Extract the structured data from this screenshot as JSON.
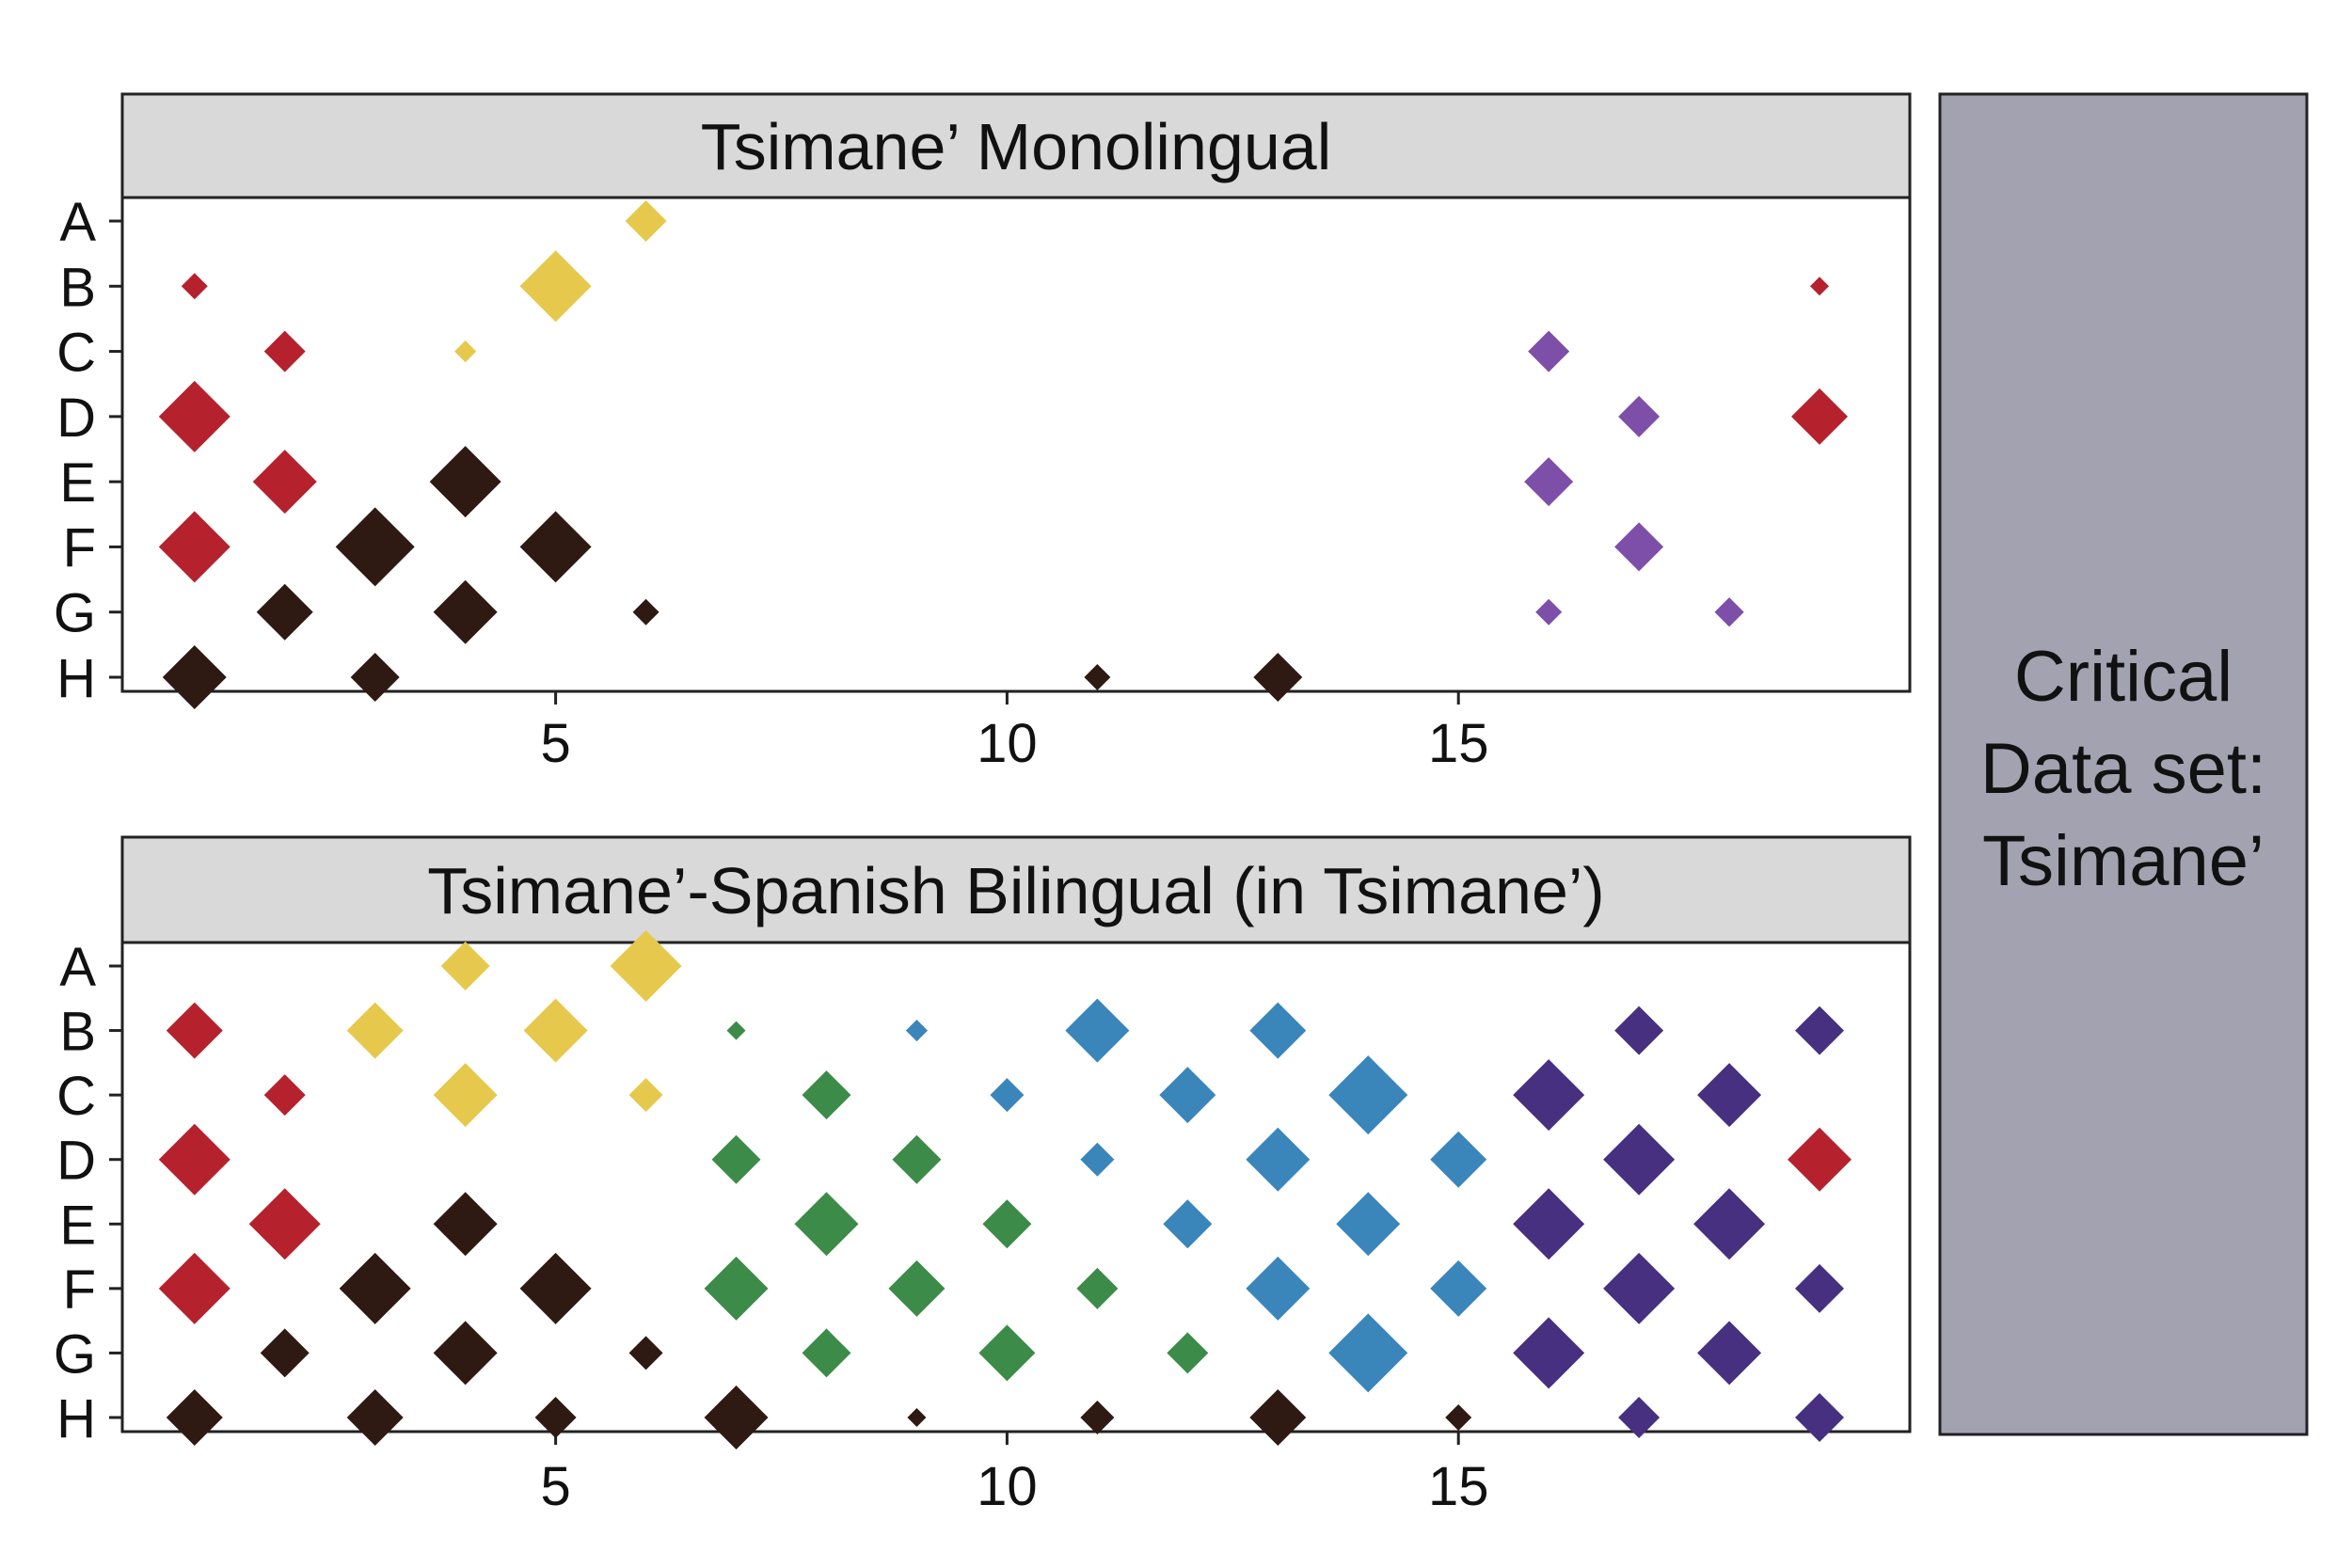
{
  "colors": {
    "red": "#b5222d",
    "yellow": "#e6c94c",
    "black": "#2e1a12",
    "purple": "#7d4fa8",
    "green": "#3d8b49",
    "blue": "#3a86bb",
    "indigo": "#46307f",
    "strip_bg": "#d9d9d9",
    "side_bg": "#a3a2b0"
  },
  "side_label": [
    "Critical",
    "Data set:",
    "Tsimane’"
  ],
  "chart_data": [
    {
      "type": "scatter",
      "title": "Tsimane’ Monolingual",
      "xlabel": "",
      "ylabel": "",
      "x_ticks": [
        5,
        10,
        15
      ],
      "categories": [
        "A",
        "B",
        "C",
        "D",
        "E",
        "F",
        "G",
        "H"
      ],
      "xlim": [
        0.2,
        20
      ],
      "points": [
        {
          "x": 6,
          "y": "A",
          "color": "yellow",
          "size": 2
        },
        {
          "x": 1,
          "y": "B",
          "color": "red",
          "size": 1
        },
        {
          "x": 5,
          "y": "B",
          "color": "yellow",
          "size": 4
        },
        {
          "x": 19,
          "y": "B",
          "color": "red",
          "size": 0.5
        },
        {
          "x": 2,
          "y": "C",
          "color": "red",
          "size": 2
        },
        {
          "x": 4,
          "y": "C",
          "color": "yellow",
          "size": 0.7
        },
        {
          "x": 16,
          "y": "C",
          "color": "purple",
          "size": 2
        },
        {
          "x": 1,
          "y": "D",
          "color": "red",
          "size": 4
        },
        {
          "x": 17,
          "y": "D",
          "color": "purple",
          "size": 2
        },
        {
          "x": 19,
          "y": "D",
          "color": "red",
          "size": 3
        },
        {
          "x": 2,
          "y": "E",
          "color": "red",
          "size": 3.5
        },
        {
          "x": 4,
          "y": "E",
          "color": "black",
          "size": 4
        },
        {
          "x": 16,
          "y": "E",
          "color": "purple",
          "size": 2.5
        },
        {
          "x": 1,
          "y": "F",
          "color": "red",
          "size": 4
        },
        {
          "x": 3,
          "y": "F",
          "color": "black",
          "size": 4.5
        },
        {
          "x": 5,
          "y": "F",
          "color": "black",
          "size": 4
        },
        {
          "x": 17,
          "y": "F",
          "color": "purple",
          "size": 2.5
        },
        {
          "x": 2,
          "y": "G",
          "color": "black",
          "size": 3
        },
        {
          "x": 4,
          "y": "G",
          "color": "black",
          "size": 3.5
        },
        {
          "x": 6,
          "y": "G",
          "color": "black",
          "size": 1
        },
        {
          "x": 16,
          "y": "G",
          "color": "purple",
          "size": 1
        },
        {
          "x": 18,
          "y": "G",
          "color": "purple",
          "size": 1.2
        },
        {
          "x": 1,
          "y": "H",
          "color": "black",
          "size": 3.5
        },
        {
          "x": 3,
          "y": "H",
          "color": "black",
          "size": 2.5
        },
        {
          "x": 11,
          "y": "H",
          "color": "black",
          "size": 1
        },
        {
          "x": 13,
          "y": "H",
          "color": "black",
          "size": 2.5
        }
      ]
    },
    {
      "type": "scatter",
      "title": "Tsimane’-Spanish Bilingual (in Tsimane’)",
      "xlabel": "",
      "ylabel": "",
      "x_ticks": [
        5,
        10,
        15
      ],
      "categories": [
        "A",
        "B",
        "C",
        "D",
        "E",
        "F",
        "G",
        "H"
      ],
      "xlim": [
        0.2,
        20
      ],
      "points": [
        {
          "x": 4,
          "y": "A",
          "color": "yellow",
          "size": 2.5
        },
        {
          "x": 6,
          "y": "A",
          "color": "yellow",
          "size": 4
        },
        {
          "x": 1,
          "y": "B",
          "color": "red",
          "size": 3
        },
        {
          "x": 3,
          "y": "B",
          "color": "yellow",
          "size": 3
        },
        {
          "x": 5,
          "y": "B",
          "color": "yellow",
          "size": 3.5
        },
        {
          "x": 7,
          "y": "B",
          "color": "green",
          "size": 0.5
        },
        {
          "x": 9,
          "y": "B",
          "color": "blue",
          "size": 0.7
        },
        {
          "x": 11,
          "y": "B",
          "color": "blue",
          "size": 3.5
        },
        {
          "x": 13,
          "y": "B",
          "color": "blue",
          "size": 3
        },
        {
          "x": 17,
          "y": "B",
          "color": "indigo",
          "size": 2.5
        },
        {
          "x": 19,
          "y": "B",
          "color": "indigo",
          "size": 2.5
        },
        {
          "x": 2,
          "y": "C",
          "color": "red",
          "size": 2
        },
        {
          "x": 4,
          "y": "C",
          "color": "yellow",
          "size": 3.5
        },
        {
          "x": 6,
          "y": "C",
          "color": "yellow",
          "size": 1.5
        },
        {
          "x": 8,
          "y": "C",
          "color": "green",
          "size": 2.5
        },
        {
          "x": 10,
          "y": "C",
          "color": "blue",
          "size": 1.5
        },
        {
          "x": 12,
          "y": "C",
          "color": "blue",
          "size": 3
        },
        {
          "x": 14,
          "y": "C",
          "color": "blue",
          "size": 4.5
        },
        {
          "x": 16,
          "y": "C",
          "color": "indigo",
          "size": 4
        },
        {
          "x": 18,
          "y": "C",
          "color": "indigo",
          "size": 3.5
        },
        {
          "x": 1,
          "y": "D",
          "color": "red",
          "size": 4
        },
        {
          "x": 7,
          "y": "D",
          "color": "green",
          "size": 2.5
        },
        {
          "x": 9,
          "y": "D",
          "color": "green",
          "size": 2.5
        },
        {
          "x": 11,
          "y": "D",
          "color": "blue",
          "size": 1.5
        },
        {
          "x": 13,
          "y": "D",
          "color": "blue",
          "size": 3.5
        },
        {
          "x": 15,
          "y": "D",
          "color": "blue",
          "size": 3
        },
        {
          "x": 17,
          "y": "D",
          "color": "indigo",
          "size": 4
        },
        {
          "x": 19,
          "y": "D",
          "color": "red",
          "size": 3.5
        },
        {
          "x": 2,
          "y": "E",
          "color": "red",
          "size": 4
        },
        {
          "x": 4,
          "y": "E",
          "color": "black",
          "size": 3.5
        },
        {
          "x": 8,
          "y": "E",
          "color": "green",
          "size": 3.5
        },
        {
          "x": 10,
          "y": "E",
          "color": "green",
          "size": 2.5
        },
        {
          "x": 12,
          "y": "E",
          "color": "blue",
          "size": 2.5
        },
        {
          "x": 14,
          "y": "E",
          "color": "blue",
          "size": 3.5
        },
        {
          "x": 16,
          "y": "E",
          "color": "indigo",
          "size": 4
        },
        {
          "x": 18,
          "y": "E",
          "color": "indigo",
          "size": 4
        },
        {
          "x": 1,
          "y": "F",
          "color": "red",
          "size": 4
        },
        {
          "x": 3,
          "y": "F",
          "color": "black",
          "size": 4
        },
        {
          "x": 5,
          "y": "F",
          "color": "black",
          "size": 4
        },
        {
          "x": 7,
          "y": "F",
          "color": "green",
          "size": 3.5
        },
        {
          "x": 9,
          "y": "F",
          "color": "green",
          "size": 3
        },
        {
          "x": 11,
          "y": "F",
          "color": "green",
          "size": 2
        },
        {
          "x": 13,
          "y": "F",
          "color": "blue",
          "size": 3.5
        },
        {
          "x": 15,
          "y": "F",
          "color": "blue",
          "size": 3
        },
        {
          "x": 17,
          "y": "F",
          "color": "indigo",
          "size": 4
        },
        {
          "x": 19,
          "y": "F",
          "color": "indigo",
          "size": 2.5
        },
        {
          "x": 2,
          "y": "G",
          "color": "black",
          "size": 2.5
        },
        {
          "x": 4,
          "y": "G",
          "color": "black",
          "size": 3.5
        },
        {
          "x": 6,
          "y": "G",
          "color": "black",
          "size": 1.5
        },
        {
          "x": 8,
          "y": "G",
          "color": "green",
          "size": 2.5
        },
        {
          "x": 10,
          "y": "G",
          "color": "green",
          "size": 3
        },
        {
          "x": 12,
          "y": "G",
          "color": "green",
          "size": 2
        },
        {
          "x": 14,
          "y": "G",
          "color": "blue",
          "size": 4.5
        },
        {
          "x": 16,
          "y": "G",
          "color": "indigo",
          "size": 4
        },
        {
          "x": 18,
          "y": "G",
          "color": "indigo",
          "size": 3.5
        },
        {
          "x": 1,
          "y": "H",
          "color": "black",
          "size": 3
        },
        {
          "x": 3,
          "y": "H",
          "color": "black",
          "size": 3
        },
        {
          "x": 5,
          "y": "H",
          "color": "black",
          "size": 2
        },
        {
          "x": 7,
          "y": "H",
          "color": "black",
          "size": 3.5
        },
        {
          "x": 9,
          "y": "H",
          "color": "black",
          "size": 0.5
        },
        {
          "x": 11,
          "y": "H",
          "color": "black",
          "size": 1.5
        },
        {
          "x": 13,
          "y": "H",
          "color": "black",
          "size": 3
        },
        {
          "x": 15,
          "y": "H",
          "color": "black",
          "size": 1
        },
        {
          "x": 17,
          "y": "H",
          "color": "indigo",
          "size": 2
        },
        {
          "x": 19,
          "y": "H",
          "color": "indigo",
          "size": 2.5
        }
      ]
    }
  ]
}
